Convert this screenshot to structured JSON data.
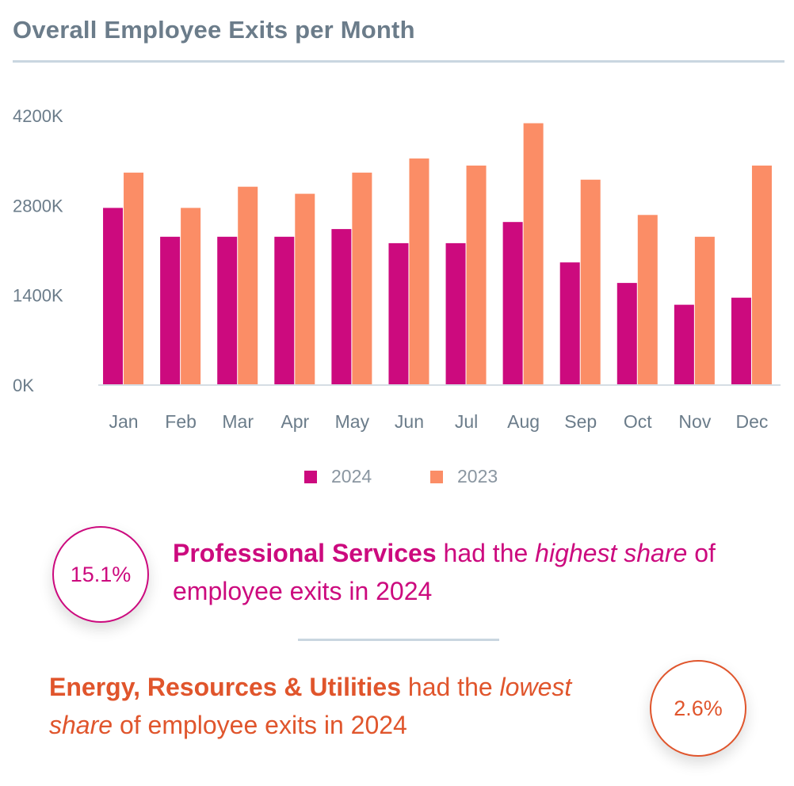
{
  "header": {
    "title": "Overall Employee Exits per Month"
  },
  "colors": {
    "series_2024": "#cc0a7e",
    "series_2023": "#fb8d66",
    "axis": "#d5dde4",
    "tick_text": "#6b7c8a",
    "magenta_text": "#cc0a7e",
    "orange_text": "#e0552c"
  },
  "chart_data": {
    "type": "bar",
    "title": "Overall Employee Exits per Month",
    "xlabel": "",
    "ylabel": "",
    "ylim": [
      0,
      4200
    ],
    "yticks": [
      0,
      1400,
      2800,
      4200
    ],
    "ytick_labels": [
      "0K",
      "1400K",
      "2800K",
      "4200K"
    ],
    "categories": [
      "Jan",
      "Feb",
      "Mar",
      "Apr",
      "May",
      "Jun",
      "Jul",
      "Aug",
      "Sep",
      "Oct",
      "Nov",
      "Dec"
    ],
    "series": [
      {
        "name": "2024",
        "values": [
          2750,
          2300,
          2300,
          2300,
          2420,
          2200,
          2200,
          2530,
          1900,
          1580,
          1240,
          1350
        ]
      },
      {
        "name": "2023",
        "values": [
          3300,
          2750,
          3080,
          2970,
          3300,
          3520,
          3410,
          4070,
          3190,
          2640,
          2300,
          3410
        ]
      }
    ],
    "legend": "bottom-center",
    "grid": false
  },
  "legend": [
    {
      "label": "2024"
    },
    {
      "label": "2023"
    }
  ],
  "stats": [
    {
      "value": "15.1%",
      "bold": "Professional Services",
      "text1": " had the ",
      "italic": "highest share",
      "text2": " of employee exits in 2024"
    },
    {
      "value": "2.6%",
      "bold": "Energy, Resources & Utilities",
      "text1": " had the ",
      "italic": "lowest share",
      "text2": " of employee exits in 2024"
    }
  ]
}
